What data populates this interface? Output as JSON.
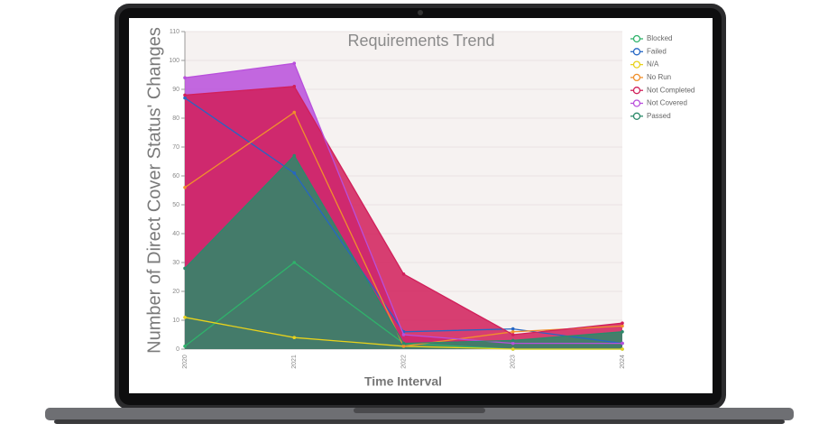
{
  "chart_data": {
    "type": "line",
    "title": "Requirements Trend",
    "x_label": "Time Interval",
    "y_label": "Number of Direct Cover Status' Changes",
    "categories": [
      "2020",
      "2021",
      "2022",
      "2023",
      "2024"
    ],
    "ylim": [
      0,
      110
    ],
    "yticks": [
      0,
      10,
      20,
      30,
      40,
      50,
      60,
      70,
      80,
      90,
      100,
      110
    ],
    "grid": true,
    "series": [
      {
        "name": "Blocked",
        "color": "#2fb36b",
        "values": [
          1,
          30,
          2,
          0,
          0
        ],
        "fill": false
      },
      {
        "name": "Failed",
        "color": "#2566c4",
        "values": [
          87,
          61,
          6,
          7,
          2
        ],
        "fill": false
      },
      {
        "name": "N/A",
        "color": "#e8d21c",
        "values": [
          11,
          4,
          1,
          0,
          0
        ],
        "fill": false
      },
      {
        "name": "No Run",
        "color": "#f0902c",
        "values": [
          56,
          82,
          1,
          6,
          8
        ],
        "fill": false
      },
      {
        "name": "Not Completed",
        "color": "#d11f5a",
        "values": [
          88,
          91,
          26,
          5,
          9
        ],
        "fill": true
      },
      {
        "name": "Not Covered",
        "color": "#b84fdc",
        "values": [
          94,
          99,
          5,
          2,
          2
        ],
        "fill": true
      },
      {
        "name": "Passed",
        "color": "#2b8a6a",
        "values": [
          28,
          67,
          2,
          3,
          6
        ],
        "fill": true
      }
    ]
  }
}
